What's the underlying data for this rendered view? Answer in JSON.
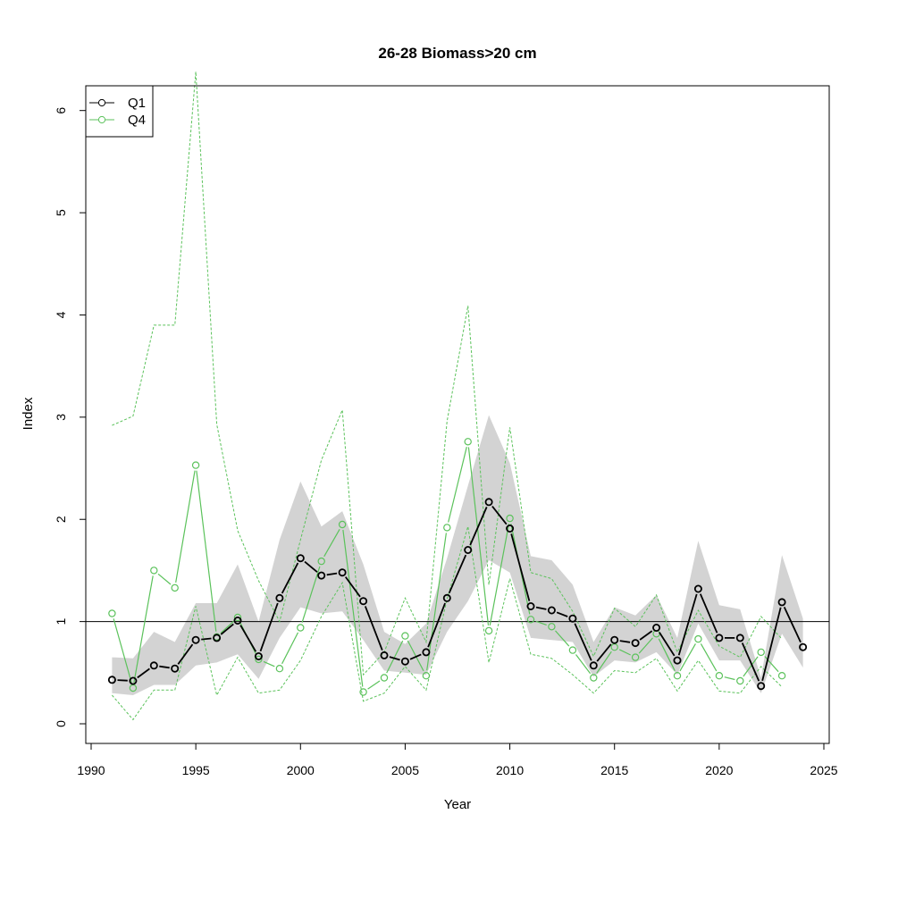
{
  "chart_data": {
    "type": "line",
    "title": "26-28 Biomass>20 cm",
    "xlabel": "Year",
    "ylabel": "Index",
    "xlim": [
      1990,
      2025
    ],
    "ylim": [
      0,
      6.5
    ],
    "x_ticks": [
      1990,
      1995,
      2000,
      2005,
      2010,
      2015,
      2020,
      2025
    ],
    "y_ticks": [
      0,
      1,
      2,
      3,
      4,
      5,
      6
    ],
    "reference_line": 1,
    "legend_position": "top-left",
    "grid": false,
    "series": [
      {
        "name": "Q1",
        "color": "#000000",
        "x": [
          1991,
          1992,
          1993,
          1994,
          1995,
          1996,
          1997,
          1998,
          1999,
          2000,
          2001,
          2002,
          2003,
          2004,
          2005,
          2006,
          2007,
          2008,
          2009,
          2010,
          2011,
          2012,
          2013,
          2014,
          2015,
          2016,
          2017,
          2018,
          2019,
          2020,
          2021,
          2022,
          2023,
          2024
        ],
        "values": [
          0.43,
          0.42,
          0.57,
          0.54,
          0.82,
          0.84,
          1.01,
          0.66,
          1.23,
          1.62,
          1.45,
          1.48,
          1.2,
          0.67,
          0.61,
          0.7,
          1.23,
          1.7,
          2.17,
          1.91,
          1.15,
          1.11,
          1.03,
          0.57,
          0.82,
          0.79,
          0.94,
          0.62,
          1.32,
          0.84,
          0.84,
          0.37,
          1.19,
          0.75
        ],
        "ci_lower": [
          0.3,
          0.28,
          0.38,
          0.38,
          0.57,
          0.6,
          0.68,
          0.44,
          0.84,
          1.14,
          1.08,
          1.1,
          0.82,
          0.52,
          0.5,
          0.48,
          0.9,
          1.2,
          1.6,
          1.48,
          0.84,
          0.82,
          0.8,
          0.46,
          0.62,
          0.6,
          0.7,
          0.48,
          0.98,
          0.62,
          0.62,
          0.3,
          0.88,
          0.55
        ],
        "ci_upper": [
          0.65,
          0.64,
          0.9,
          0.8,
          1.18,
          1.18,
          1.56,
          1.0,
          1.8,
          2.37,
          1.93,
          2.08,
          1.56,
          0.9,
          0.78,
          0.98,
          1.62,
          2.33,
          3.02,
          2.55,
          1.64,
          1.6,
          1.36,
          0.8,
          1.14,
          1.06,
          1.26,
          0.84,
          1.79,
          1.16,
          1.12,
          0.45,
          1.65,
          1.03
        ]
      },
      {
        "name": "Q4",
        "color": "#5BC25B",
        "x": [
          1991,
          1992,
          1993,
          1994,
          1995,
          1996,
          1997,
          1998,
          1999,
          2000,
          2001,
          2002,
          2003,
          2004,
          2005,
          2006,
          2007,
          2008,
          2009,
          2010,
          2011,
          2012,
          2013,
          2014,
          2015,
          2016,
          2017,
          2018,
          2019,
          2020,
          2021,
          2022,
          2023
        ],
        "values": [
          1.08,
          0.35,
          1.5,
          1.33,
          2.53,
          0.85,
          1.04,
          0.63,
          0.54,
          0.94,
          1.59,
          1.95,
          0.31,
          0.45,
          0.86,
          0.47,
          1.92,
          2.76,
          0.91,
          2.01,
          1.02,
          0.95,
          0.72,
          0.45,
          0.75,
          0.65,
          0.88,
          0.47,
          0.83,
          0.47,
          0.42,
          0.7,
          0.47
        ],
        "ci_lower": [
          0.28,
          0.04,
          0.33,
          0.33,
          1.15,
          0.28,
          0.65,
          0.3,
          0.33,
          0.62,
          1.05,
          1.38,
          0.22,
          0.3,
          0.56,
          0.33,
          1.22,
          1.93,
          0.6,
          1.42,
          0.68,
          0.64,
          0.48,
          0.3,
          0.52,
          0.5,
          0.64,
          0.32,
          0.62,
          0.32,
          0.3,
          0.56,
          0.36
        ],
        "ci_upper": [
          2.92,
          3.01,
          3.9,
          3.9,
          6.38,
          2.93,
          1.89,
          1.4,
          1.0,
          1.8,
          2.58,
          3.07,
          0.48,
          0.7,
          1.23,
          0.8,
          2.96,
          4.09,
          1.36,
          2.9,
          1.48,
          1.42,
          1.1,
          0.66,
          1.13,
          0.95,
          1.26,
          0.7,
          1.11,
          0.76,
          0.65,
          1.05,
          0.83
        ]
      }
    ]
  }
}
